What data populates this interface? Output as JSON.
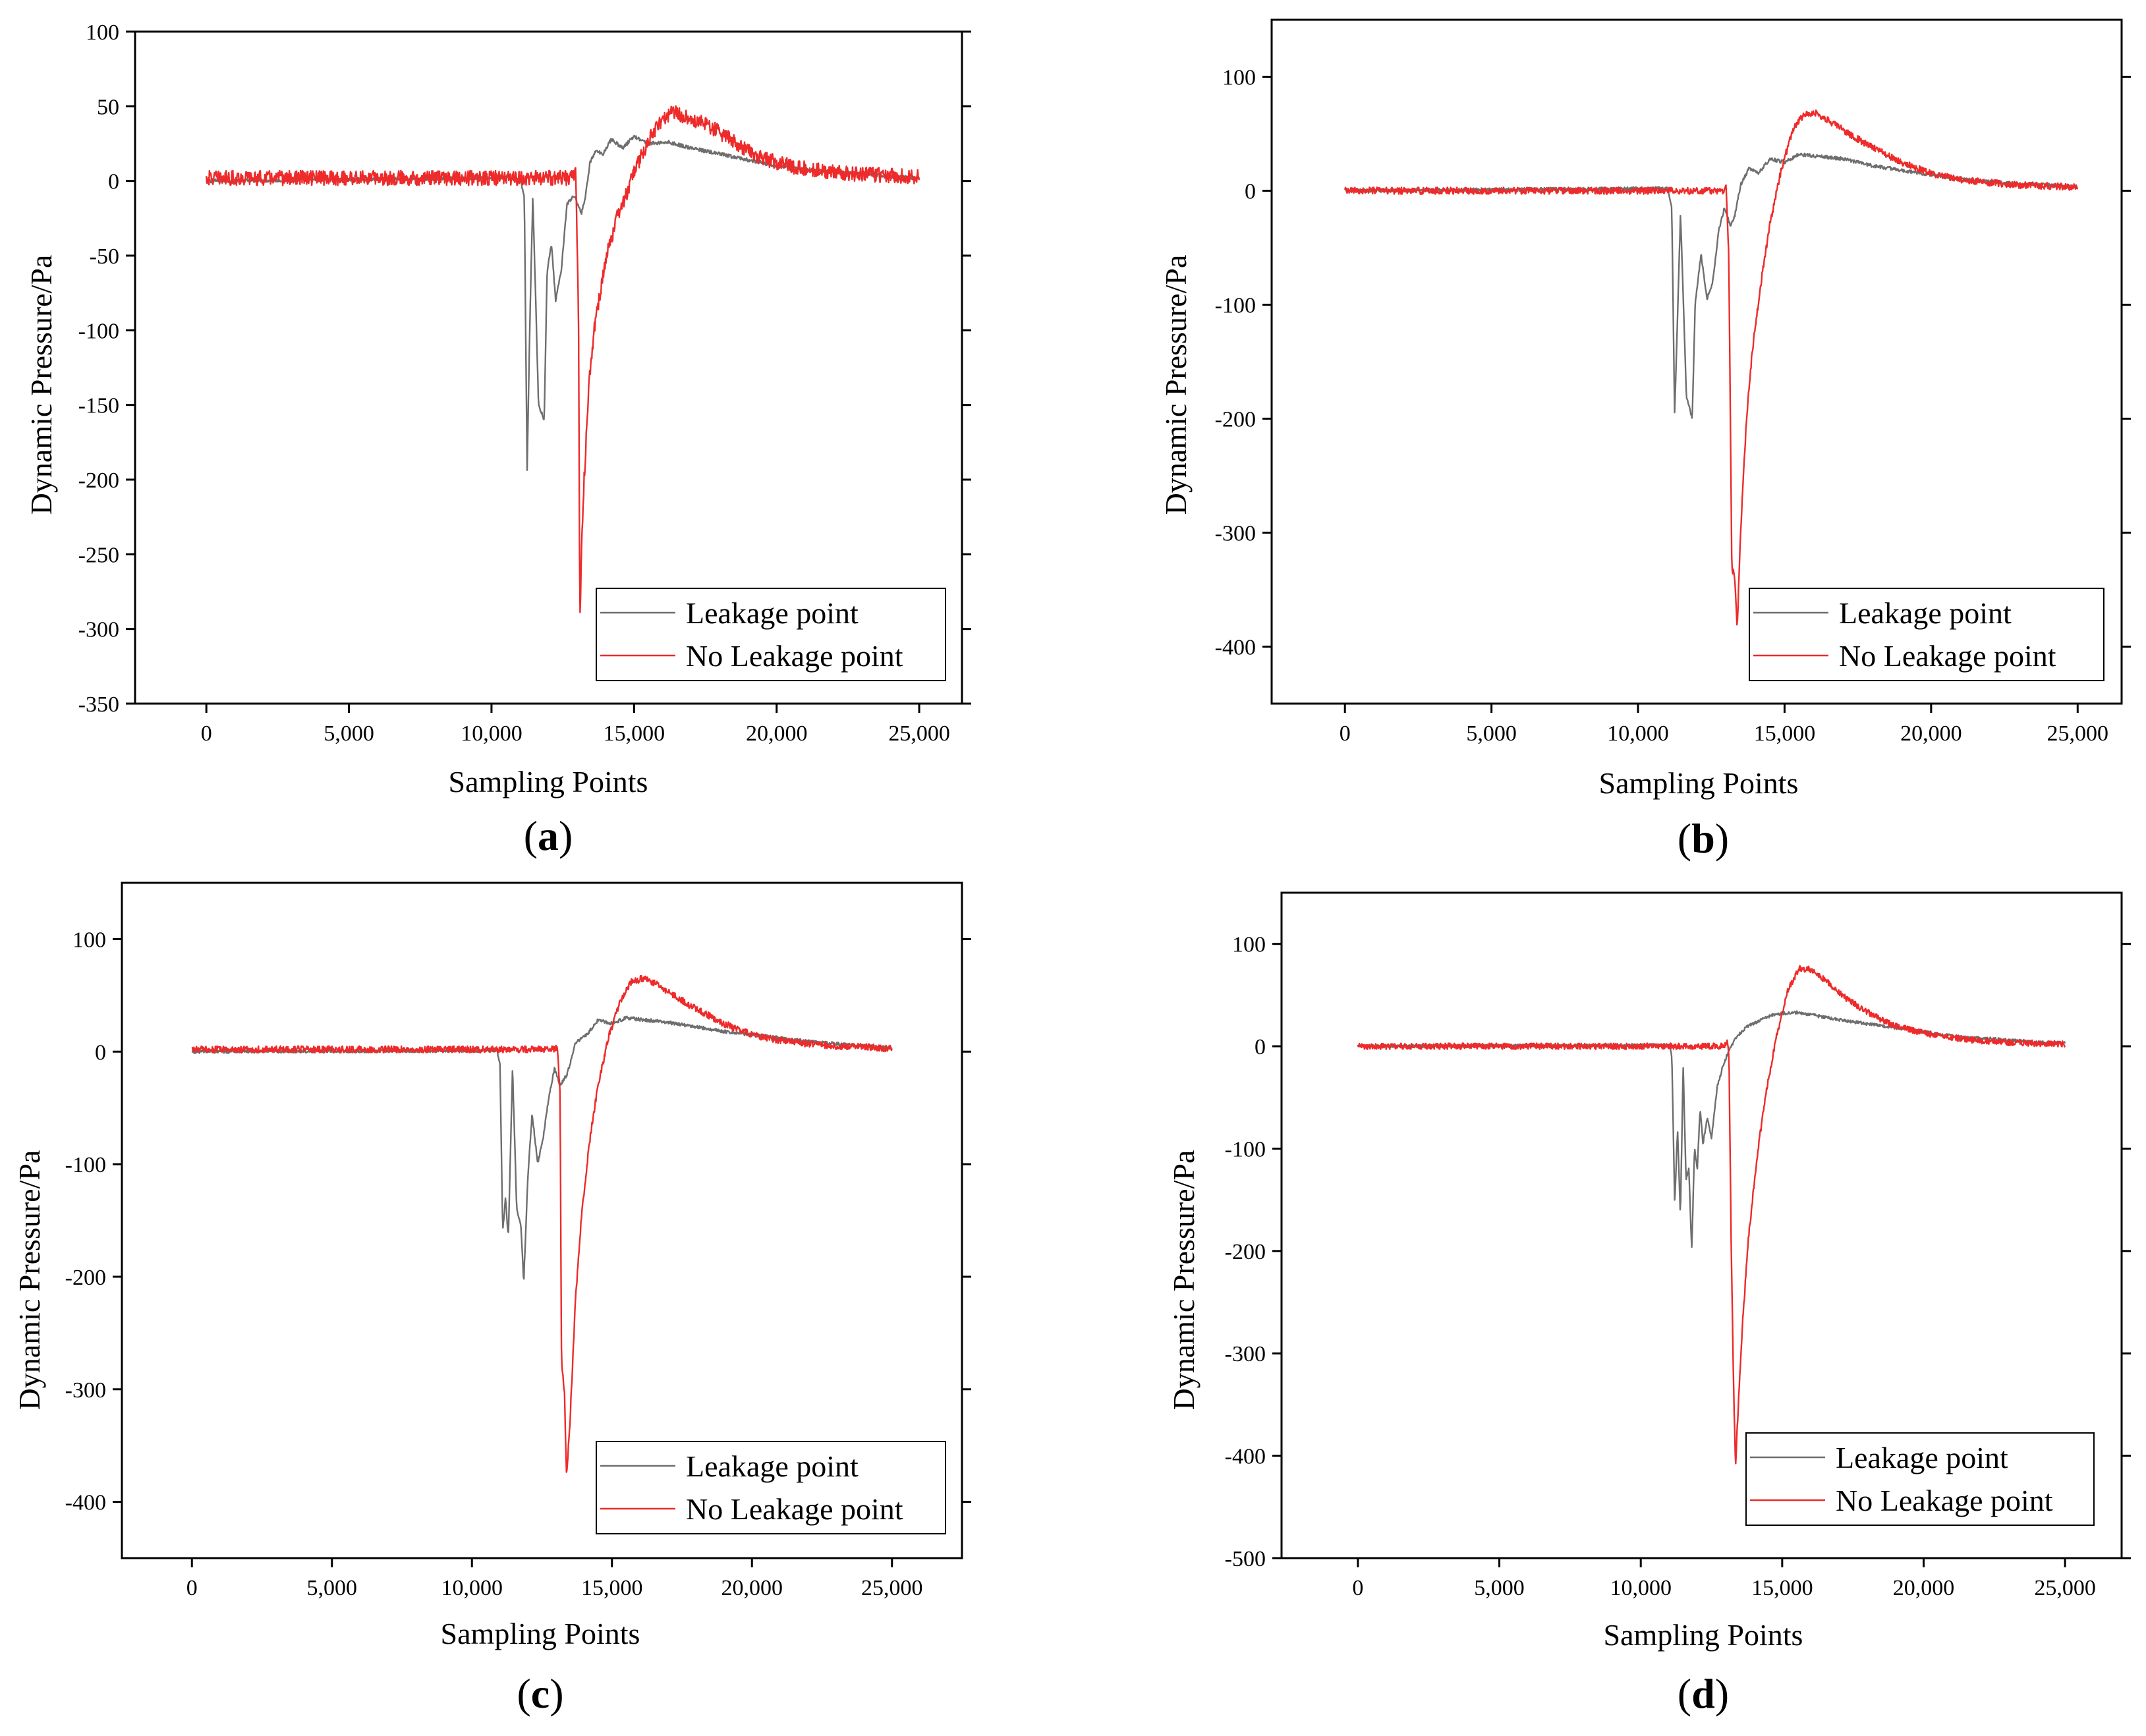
{
  "figure": {
    "colors": {
      "leakage": "#6e6e6e",
      "no_leakage": "#ee2a2a",
      "axis": "#000000"
    }
  },
  "chart_data": [
    {
      "panel": "a",
      "type": "line",
      "xlabel": "Sampling Points",
      "ylabel": "Dynamic Pressure/Pa",
      "xlim": [
        -2500,
        26500
      ],
      "ylim": [
        -350,
        100
      ],
      "xticks": [
        0,
        5000,
        10000,
        15000,
        20000,
        25000
      ],
      "xtick_labels": [
        "0",
        "5,000",
        "10,000",
        "15,000",
        "20,000",
        "25,000"
      ],
      "yticks": [
        100,
        50,
        0,
        -50,
        -100,
        -150,
        -200,
        -250,
        -300,
        -350
      ],
      "ytick_labels": [
        "100",
        "50",
        "0",
        "-50",
        "-100",
        "-150",
        "-200",
        "-250",
        "-300",
        "-350"
      ],
      "legend_position": "bottom-right",
      "series": [
        {
          "name": "Leakage point",
          "color": "#6e6e6e",
          "x": [
            0,
            11000,
            11150,
            11250,
            11350,
            11450,
            11650,
            11850,
            11950,
            12100,
            12250,
            12450,
            12650,
            12900,
            13150,
            13300,
            13450,
            13650,
            13900,
            14200,
            14600,
            15000,
            15500,
            16200,
            17000,
            18000,
            19000,
            20000,
            21000,
            22000,
            23000,
            24000,
            25000
          ],
          "y": [
            0,
            2,
            -10,
            -193,
            -90,
            -10,
            -150,
            -160,
            -60,
            -42,
            -80,
            -60,
            -15,
            -10,
            -22,
            -10,
            12,
            20,
            18,
            28,
            22,
            30,
            25,
            26,
            22,
            18,
            14,
            10,
            8,
            6,
            5,
            3,
            2
          ],
          "noise": 1.2
        },
        {
          "name": "No Leakage point",
          "color": "#ee2a2a",
          "x": [
            0,
            12800,
            12950,
            13050,
            13100,
            13150,
            13250,
            13400,
            13600,
            13850,
            14100,
            14400,
            14800,
            15200,
            15600,
            16000,
            16400,
            17000,
            17800,
            18600,
            19500,
            20500,
            21500,
            22500,
            23500,
            25000
          ],
          "y": [
            2,
            2,
            5,
            -80,
            -300,
            -250,
            -200,
            -140,
            -100,
            -70,
            -45,
            -25,
            -5,
            15,
            30,
            42,
            46,
            42,
            35,
            25,
            15,
            10,
            7,
            5,
            4,
            3
          ],
          "noise": 5
        }
      ]
    },
    {
      "panel": "b",
      "type": "line",
      "xlabel": "Sampling Points",
      "ylabel": "Dynamic Pressure/Pa",
      "xlim": [
        -2500,
        26500
      ],
      "ylim": [
        -450,
        150
      ],
      "xticks": [
        0,
        5000,
        10000,
        15000,
        20000,
        25000
      ],
      "xtick_labels": [
        "0",
        "5,000",
        "10,000",
        "15,000",
        "20,000",
        "25,000"
      ],
      "yticks": [
        100,
        0,
        -100,
        -200,
        -300,
        -400
      ],
      "ytick_labels": [
        "100",
        "0",
        "-100",
        "-200",
        "-300",
        "-400"
      ],
      "legend_position": "bottom-right",
      "series": [
        {
          "name": "Leakage point",
          "color": "#6e6e6e",
          "x": [
            0,
            11000,
            11150,
            11250,
            11350,
            11450,
            11650,
            11850,
            11950,
            12150,
            12350,
            12550,
            12750,
            12950,
            13150,
            13300,
            13500,
            13800,
            14100,
            14500,
            15000,
            15500,
            16200,
            17000,
            18000,
            19000,
            20000,
            21000,
            22000,
            23000,
            24000,
            25000
          ],
          "y": [
            0,
            2,
            -15,
            -195,
            -110,
            -20,
            -180,
            -200,
            -100,
            -55,
            -95,
            -80,
            -35,
            -15,
            -30,
            -22,
            5,
            20,
            15,
            28,
            25,
            32,
            30,
            28,
            22,
            18,
            14,
            10,
            8,
            6,
            5,
            3
          ],
          "noise": 1.5
        },
        {
          "name": "No Leakage point",
          "color": "#ee2a2a",
          "x": [
            0,
            12900,
            13000,
            13100,
            13200,
            13300,
            13380,
            13500,
            13700,
            13900,
            14200,
            14500,
            14900,
            15300,
            15700,
            16100,
            16600,
            17200,
            18000,
            19000,
            20000,
            21000,
            22000,
            23000,
            25000
          ],
          "y": [
            0,
            0,
            5,
            -60,
            -330,
            -340,
            -385,
            -300,
            -200,
            -140,
            -80,
            -30,
            20,
            55,
            68,
            68,
            60,
            50,
            38,
            25,
            15,
            10,
            7,
            5,
            3
          ],
          "noise": 3
        }
      ]
    },
    {
      "panel": "c",
      "type": "line",
      "xlabel": "Sampling Points",
      "ylabel": "Dynamic Pressure/Pa",
      "xlim": [
        -2500,
        27500
      ],
      "ylim": [
        -450,
        150
      ],
      "xticks": [
        0,
        5000,
        10000,
        15000,
        20000,
        25000
      ],
      "xtick_labels": [
        "0",
        "5,000",
        "10,000",
        "15,000",
        "20,000",
        "25,000"
      ],
      "yticks": [
        100,
        0,
        -100,
        -200,
        -300,
        -400
      ],
      "ytick_labels": [
        "100",
        "0",
        "-100",
        "-200",
        "-300",
        "-400"
      ],
      "legend_position": "bottom-right",
      "series": [
        {
          "name": "Leakage point",
          "color": "#6e6e6e",
          "x": [
            0,
            10900,
            11000,
            11100,
            11200,
            11300,
            11450,
            11600,
            11750,
            11850,
            12000,
            12150,
            12350,
            12550,
            12750,
            12950,
            13150,
            13400,
            13700,
            14100,
            14500,
            15000,
            15500,
            16200,
            17000,
            18000,
            19000,
            20000,
            21000,
            22000,
            23000,
            24000,
            25000
          ],
          "y": [
            0,
            1,
            -10,
            -160,
            -130,
            -165,
            -15,
            -140,
            -155,
            -205,
            -110,
            -55,
            -100,
            -75,
            -40,
            -15,
            -30,
            -20,
            8,
            15,
            28,
            25,
            30,
            28,
            26,
            22,
            18,
            15,
            12,
            9,
            7,
            5,
            3
          ],
          "noise": 1.5
        },
        {
          "name": "No Leakage point",
          "color": "#ee2a2a",
          "x": [
            0,
            12950,
            13050,
            13150,
            13200,
            13300,
            13380,
            13500,
            13700,
            13900,
            14200,
            14500,
            14900,
            15300,
            15700,
            16100,
            16600,
            17200,
            18000,
            19000,
            20000,
            21000,
            22000,
            23000,
            24000,
            25000
          ],
          "y": [
            2,
            2,
            5,
            -40,
            -280,
            -300,
            -378,
            -330,
            -220,
            -150,
            -80,
            -30,
            15,
            45,
            62,
            65,
            60,
            50,
            38,
            25,
            15,
            10,
            7,
            5,
            4,
            3
          ],
          "noise": 3
        }
      ]
    },
    {
      "panel": "d",
      "type": "line",
      "xlabel": "Sampling Points",
      "ylabel": "Dynamic Pressure/Pa",
      "xlim": [
        -2700,
        27000
      ],
      "ylim": [
        -500,
        150
      ],
      "xticks": [
        0,
        5000,
        10000,
        15000,
        20000,
        25000
      ],
      "xtick_labels": [
        "0",
        "5,000",
        "10,000",
        "15,000",
        "20,000",
        "25,000"
      ],
      "yticks": [
        100,
        0,
        -100,
        -200,
        -300,
        -400,
        -500
      ],
      "ytick_labels": [
        "100",
        "0",
        "-100",
        "-200",
        "-300",
        "-400",
        "-500"
      ],
      "legend_position": "bottom-right",
      "series": [
        {
          "name": "Leakage point",
          "color": "#6e6e6e",
          "x": [
            0,
            11000,
            11100,
            11200,
            11300,
            11400,
            11500,
            11600,
            11700,
            11800,
            11900,
            12000,
            12100,
            12200,
            12350,
            12500,
            12700,
            12900,
            13100,
            13400,
            13800,
            14200,
            14600,
            15000,
            15500,
            16200,
            17000,
            18000,
            19000,
            20000,
            21000,
            22000,
            23000,
            24000,
            25000
          ],
          "y": [
            0,
            1,
            -10,
            -155,
            -80,
            -165,
            -20,
            -130,
            -120,
            -200,
            -100,
            -120,
            -60,
            -95,
            -70,
            -90,
            -40,
            -20,
            -5,
            10,
            20,
            25,
            30,
            32,
            33,
            30,
            26,
            22,
            18,
            14,
            10,
            8,
            6,
            4,
            3
          ],
          "noise": 1.5
        },
        {
          "name": "No Leakage point",
          "color": "#ee2a2a",
          "x": [
            0,
            12950,
            13050,
            13120,
            13200,
            13280,
            13350,
            13450,
            13600,
            13800,
            14100,
            14400,
            14800,
            15200,
            15600,
            16000,
            16500,
            17100,
            17900,
            18800,
            19800,
            20800,
            21800,
            22800,
            23800,
            25000
          ],
          "y": [
            0,
            0,
            5,
            -10,
            -200,
            -330,
            -410,
            -350,
            -270,
            -190,
            -110,
            -50,
            10,
            55,
            76,
            75,
            65,
            50,
            35,
            22,
            14,
            9,
            6,
            4,
            3,
            2
          ],
          "noise": 3
        }
      ]
    }
  ],
  "panels": [
    {
      "label_open": "(",
      "label_letter": "a",
      "label_close": ")"
    },
    {
      "label_open": "(",
      "label_letter": "b",
      "label_close": ")"
    },
    {
      "label_open": "(",
      "label_letter": "c",
      "label_close": ")"
    },
    {
      "label_open": "(",
      "label_letter": "d",
      "label_close": ")"
    }
  ]
}
